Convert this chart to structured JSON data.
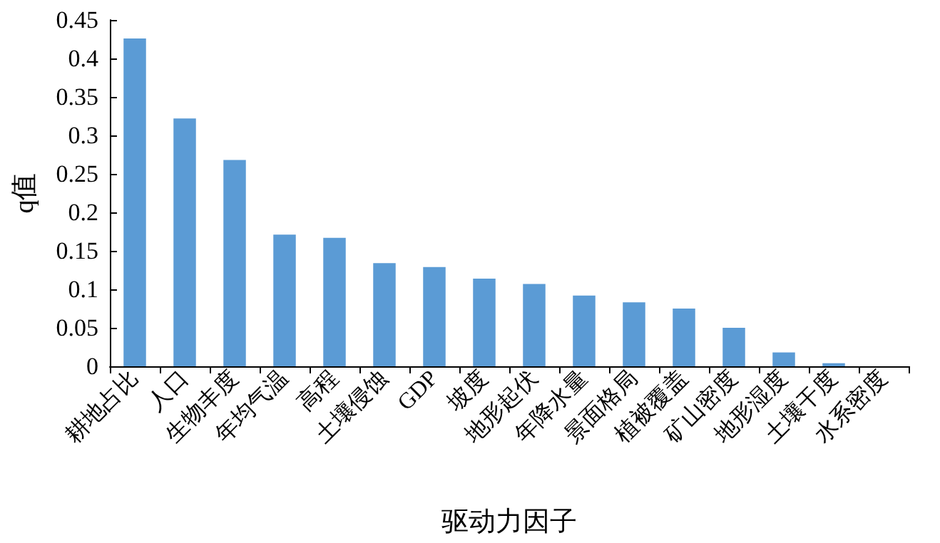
{
  "chart_data": {
    "type": "bar",
    "xlabel": "驱动力因子",
    "ylabel": "q值",
    "categories": [
      "耕地占比",
      "人口",
      "生物丰度",
      "年均气温",
      "高程",
      "土壤侵蚀",
      "GDP",
      "坡度",
      "地形起伏",
      "年降水量",
      "景面格局",
      "植被覆盖",
      "矿山密度",
      "地形湿度",
      "土壤干度",
      "水系密度"
    ],
    "values": [
      0.426,
      0.322,
      0.268,
      0.171,
      0.167,
      0.134,
      0.129,
      0.114,
      0.107,
      0.092,
      0.083,
      0.075,
      0.05,
      0.018,
      0.004,
      0
    ],
    "color": "#5b9bd5",
    "ylim": [
      0,
      0.45
    ],
    "yticks": [
      0,
      0.05,
      0.1,
      0.15,
      0.2,
      0.25,
      0.3,
      0.35,
      0.4,
      0.45
    ],
    "grid": false
  }
}
